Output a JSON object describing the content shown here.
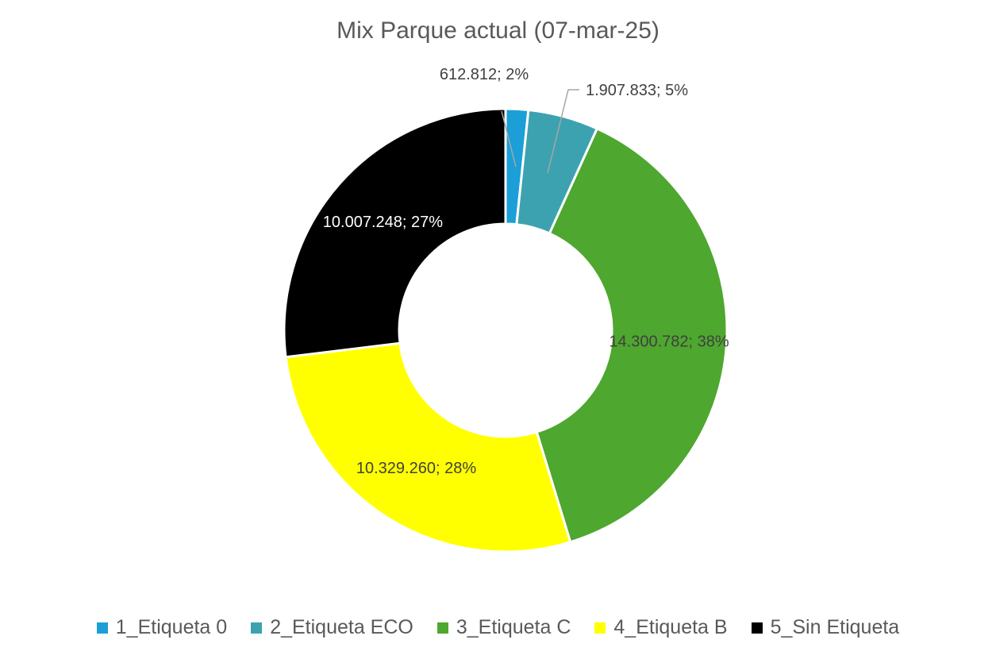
{
  "chart_data": {
    "type": "pie",
    "variant": "doughnut",
    "title": "Mix Parque actual (07-mar-25)",
    "legend_position": "bottom",
    "slices": [
      {
        "name": "1_Etiqueta 0",
        "value": 612812,
        "value_label": "612.812",
        "percent_label": "2%",
        "label": "612.812; 2%",
        "color": "#1b9fd6",
        "label_color": "#404040"
      },
      {
        "name": "2_Etiqueta ECO",
        "value": 1907833,
        "value_label": "1.907.833",
        "percent_label": "5%",
        "label": "1.907.833; 5%",
        "color": "#3da2b0",
        "label_color": "#404040"
      },
      {
        "name": "3_Etiqueta C",
        "value": 14300782,
        "value_label": "14.300.782",
        "percent_label": "38%",
        "label": "14.300.782; 38%",
        "color": "#4ea72e",
        "label_color": "#404040"
      },
      {
        "name": "4_Etiqueta B",
        "value": 10329260,
        "value_label": "10.329.260",
        "percent_label": "28%",
        "label": "10.329.260; 28%",
        "color": "#ffff00",
        "label_color": "#404040"
      },
      {
        "name": "5_Sin Etiqueta",
        "value": 10007248,
        "value_label": "10.007.248",
        "percent_label": "27%",
        "label": "10.007.248; 27%",
        "color": "#000000",
        "label_color": "#ffffff"
      }
    ]
  }
}
